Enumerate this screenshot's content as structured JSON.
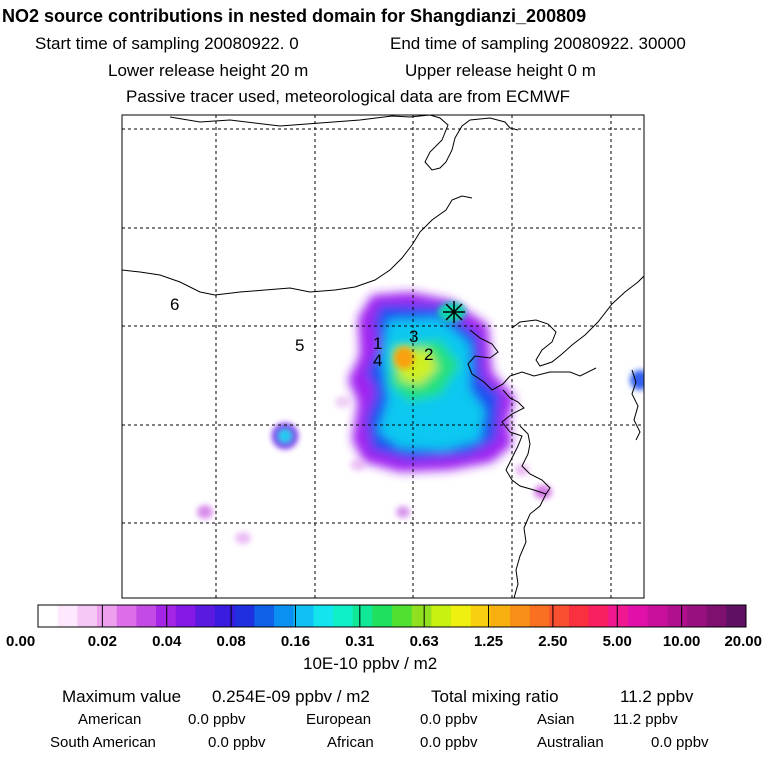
{
  "header": {
    "title": "NO2 source contributions in nested domain for Shangdianzi_200809",
    "line1_left": "Start time of sampling 20080922.     0",
    "line1_right": "End time of sampling 20080922. 30000",
    "line2_left": "Lower release height   20 m",
    "line2_right": "Upper release height    0 m",
    "line3": "Passive tracer used, meteorological data are from ECMWF"
  },
  "chart_data": {
    "type": "heatmap",
    "title": "NO2 source contributions in nested domain for Shangdianzi_200809",
    "unit": "10E-10 ppbv / m2",
    "colorbar_ticks": [
      "0.00",
      "0.02",
      "0.04",
      "0.08",
      "0.16",
      "0.31",
      "0.63",
      "1.25",
      "2.50",
      "5.00",
      "10.00",
      "20.00"
    ],
    "colorbar_colors": [
      "#ffffff",
      "#fde8fd",
      "#f6c8f6",
      "#eda0ee",
      "#dd6ee8",
      "#c44ae6",
      "#a525e6",
      "#8418e4",
      "#5a1ae0",
      "#3a1ce0",
      "#2030e0",
      "#1060e8",
      "#0a90f0",
      "#10c0f4",
      "#14e4ee",
      "#10f0c8",
      "#10e898",
      "#20e060",
      "#50e030",
      "#90e020",
      "#c8f010",
      "#f0f010",
      "#f8d010",
      "#f8b010",
      "#f89018",
      "#f87020",
      "#f85030",
      "#f83040",
      "#f82060",
      "#f01890",
      "#e010a8",
      "#c8109c",
      "#b0108e",
      "#981080",
      "#7e1070",
      "#601060"
    ],
    "markers": [
      {
        "label": "1"
      },
      {
        "label": "2"
      },
      {
        "label": "3"
      },
      {
        "label": "4"
      },
      {
        "label": "5"
      },
      {
        "label": "6"
      }
    ],
    "station": "Shangdianzi"
  },
  "summary": {
    "max_label": "Maximum value",
    "max_value": "0.254E-09 ppbv / m2",
    "total_label": "Total mixing ratio",
    "total_value": "11.2 ppbv",
    "regions": [
      {
        "name": "American",
        "value": "0.0 ppbv"
      },
      {
        "name": "European",
        "value": "0.0 ppbv"
      },
      {
        "name": "Asian",
        "value": "11.2 ppbv"
      },
      {
        "name": "South American",
        "value": "0.0 ppbv"
      },
      {
        "name": "African",
        "value": "0.0 ppbv"
      },
      {
        "name": "Australian",
        "value": "0.0 ppbv"
      }
    ]
  }
}
